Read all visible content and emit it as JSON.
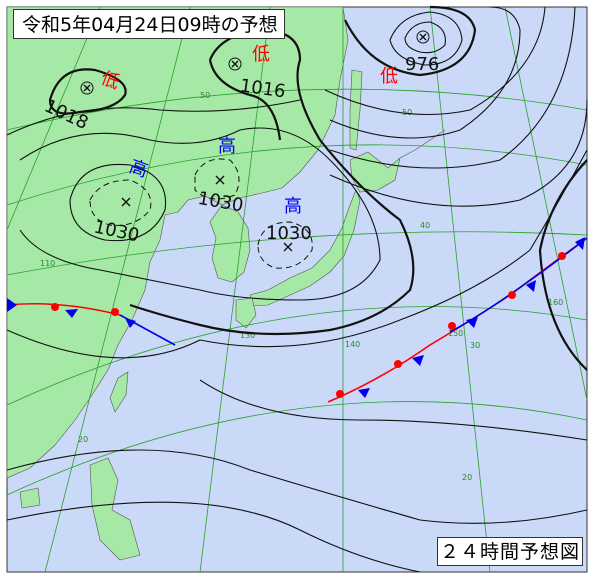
{
  "title": "令和5年04月24日09時の予想",
  "footer": "２４時間予想図",
  "colors": {
    "land": "#a6e8a6",
    "sea": "#cad9f8",
    "high": "#0000ee",
    "low": "#ff0000",
    "front_warm": "#ff0000",
    "front_cold": "#0000ee",
    "grid": "#2aa02a"
  },
  "pressure_systems": [
    {
      "type_label": "低",
      "value": "1018"
    },
    {
      "type_label": "低",
      "value": "1016"
    },
    {
      "type_label": "低",
      "value": "976"
    },
    {
      "type_label": "高",
      "value": "1030"
    },
    {
      "type_label": "高",
      "value": "1030"
    },
    {
      "type_label": "高",
      "value": "1030"
    }
  ],
  "grid_labels": {
    "lat": [
      "50",
      "40",
      "30",
      "20"
    ],
    "lon": [
      "110",
      "130",
      "140",
      "150",
      "160"
    ],
    "lat_right": [
      "50",
      "40",
      "30",
      "20"
    ]
  }
}
